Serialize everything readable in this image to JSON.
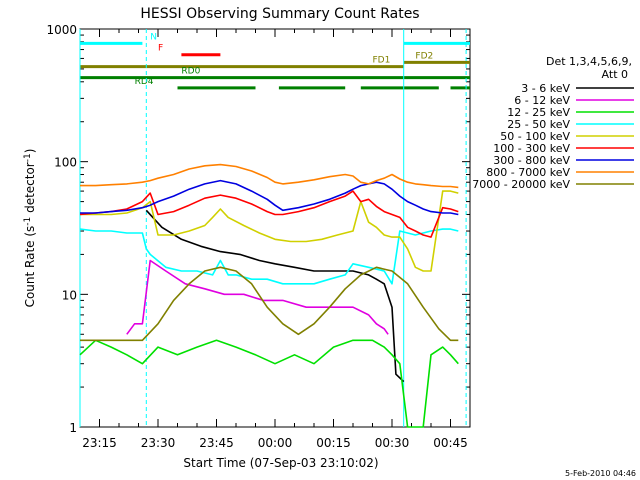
{
  "chart_data": {
    "type": "line",
    "title": "HESSI Observing Summary Count Rates",
    "xlabel": "Start Time (07-Sep-03 23:10:02)",
    "ylabel_main": "Count Rate (s",
    "ylabel_sup1": "-1",
    "ylabel_mid": " detector",
    "ylabel_sup2": "-1",
    "ylabel_end": ")",
    "yscale": "log",
    "ylim": [
      1,
      1000
    ],
    "xlim_minutes": [
      0,
      100
    ],
    "x_tick_labels": [
      {
        "t": 5,
        "label": "23:15"
      },
      {
        "t": 20,
        "label": "23:30"
      },
      {
        "t": 35,
        "label": "23:45"
      },
      {
        "t": 50,
        "label": "00:00"
      },
      {
        "t": 65,
        "label": "00:15"
      },
      {
        "t": 80,
        "label": "00:30"
      },
      {
        "t": 95,
        "label": "00:45"
      }
    ],
    "y_tick_labels": [
      {
        "v": 1,
        "label": "1"
      },
      {
        "v": 10,
        "label": "10"
      },
      {
        "v": 100,
        "label": "100"
      },
      {
        "v": 1000,
        "label": "1000"
      }
    ],
    "legend_title": "Det 1,3,4,5,6,9,",
    "legend_subtitle": "Att 0",
    "series": [
      {
        "name": "3 - 6 keV",
        "color": "#000000",
        "x": [
          0,
          14,
          17,
          21,
          26,
          31,
          36,
          41,
          46,
          50,
          55,
          60,
          65,
          70,
          74,
          76,
          78,
          80,
          81,
          83,
          84
        ],
        "y": [
          null,
          null,
          43,
          32,
          26,
          23,
          21,
          20,
          18,
          17,
          16,
          15,
          15,
          15,
          14,
          13,
          12,
          8,
          2.5,
          2.2,
          null
        ]
      },
      {
        "name": "6 - 12 keV",
        "color": "#e000e0",
        "x": [
          12,
          14,
          16,
          18,
          22,
          27,
          32,
          37,
          42,
          47,
          52,
          58,
          64,
          70,
          74,
          76,
          78,
          79,
          80
        ],
        "y": [
          5,
          6,
          6,
          18,
          15,
          12,
          11,
          10,
          10,
          9,
          9,
          8,
          8,
          8,
          7,
          6,
          5.5,
          5,
          null
        ]
      },
      {
        "name": "12 - 25 keV",
        "color": "#00e000",
        "x": [
          0,
          4,
          8,
          12,
          16,
          20,
          25,
          30,
          35,
          40,
          45,
          50,
          55,
          60,
          65,
          70,
          75,
          78,
          80,
          82,
          84,
          86,
          88,
          90,
          93,
          95,
          97
        ],
        "y": [
          3.5,
          4.5,
          4,
          3.5,
          3,
          4,
          3.5,
          4,
          4.5,
          4,
          3.5,
          3,
          3.5,
          3,
          4,
          4.5,
          4.5,
          4,
          3.5,
          3,
          1,
          1,
          1,
          3.5,
          4,
          3.5,
          3
        ]
      },
      {
        "name": "25 - 50 keV",
        "color": "#00ffff",
        "x": [
          0,
          4,
          8,
          12,
          16,
          17,
          18,
          22,
          26,
          30,
          34,
          36,
          38,
          40,
          44,
          48,
          52,
          56,
          60,
          64,
          68,
          70,
          74,
          78,
          80,
          82,
          86,
          90,
          93,
          95,
          97
        ],
        "y": [
          31,
          30,
          30,
          29,
          29,
          22,
          20,
          16,
          15,
          15,
          14,
          18,
          14,
          14,
          13,
          13,
          12,
          12,
          12,
          13,
          14,
          17,
          16,
          15,
          12,
          30,
          28,
          30,
          31,
          31,
          30
        ]
      },
      {
        "name": "50 - 100 keV",
        "color": "#d0d000",
        "x": [
          0,
          4,
          8,
          12,
          16,
          18,
          20,
          24,
          28,
          32,
          34,
          36,
          38,
          42,
          46,
          50,
          54,
          58,
          62,
          66,
          70,
          72,
          74,
          76,
          78,
          80,
          82,
          84,
          86,
          88,
          90,
          93,
          95,
          97
        ],
        "y": [
          40,
          40,
          40,
          41,
          45,
          50,
          28,
          28,
          30,
          33,
          38,
          44,
          38,
          33,
          29,
          26,
          25,
          25,
          26,
          28,
          30,
          50,
          35,
          32,
          28,
          27,
          27,
          22,
          16,
          15,
          15,
          60,
          60,
          58
        ]
      },
      {
        "name": "100 - 300 keV",
        "color": "#ff0000",
        "x": [
          0,
          4,
          8,
          12,
          16,
          18,
          20,
          24,
          28,
          32,
          36,
          40,
          44,
          48,
          50,
          52,
          56,
          60,
          64,
          68,
          70,
          72,
          74,
          76,
          78,
          80,
          82,
          84,
          86,
          88,
          90,
          93,
          95,
          97
        ],
        "y": [
          40,
          41,
          42,
          44,
          50,
          58,
          40,
          42,
          47,
          53,
          56,
          53,
          48,
          42,
          40,
          40,
          42,
          45,
          50,
          55,
          60,
          50,
          52,
          46,
          42,
          40,
          38,
          32,
          30,
          28,
          27,
          45,
          44,
          42
        ]
      },
      {
        "name": "300 - 800 keV",
        "color": "#0000e0",
        "x": [
          0,
          4,
          8,
          12,
          16,
          18,
          20,
          24,
          28,
          32,
          36,
          40,
          44,
          48,
          50,
          52,
          56,
          60,
          64,
          68,
          70,
          72,
          74,
          76,
          78,
          80,
          82,
          84,
          86,
          88,
          90,
          93,
          95,
          97
        ],
        "y": [
          41,
          41,
          42,
          43,
          45,
          47,
          50,
          55,
          62,
          68,
          72,
          68,
          60,
          52,
          47,
          43,
          45,
          48,
          52,
          58,
          62,
          66,
          68,
          70,
          68,
          62,
          55,
          50,
          47,
          44,
          42,
          41,
          41,
          40
        ]
      },
      {
        "name": "800 - 7000 keV",
        "color": "#ff8000",
        "x": [
          0,
          4,
          8,
          12,
          16,
          18,
          20,
          24,
          28,
          32,
          36,
          40,
          44,
          48,
          50,
          52,
          56,
          60,
          64,
          68,
          70,
          72,
          74,
          76,
          78,
          80,
          82,
          84,
          86,
          88,
          90,
          93,
          95,
          97
        ],
        "y": [
          66,
          66,
          67,
          68,
          70,
          72,
          75,
          80,
          88,
          93,
          95,
          92,
          85,
          76,
          70,
          68,
          70,
          73,
          77,
          80,
          78,
          70,
          68,
          72,
          75,
          80,
          74,
          70,
          68,
          67,
          66,
          65,
          65,
          64
        ]
      },
      {
        "name": "7000 - 20000 keV",
        "color": "#808000",
        "x": [
          0,
          4,
          8,
          12,
          16,
          20,
          24,
          28,
          32,
          36,
          40,
          44,
          48,
          52,
          56,
          60,
          64,
          68,
          72,
          76,
          80,
          84,
          88,
          92,
          95,
          97
        ],
        "y": [
          4.5,
          4.5,
          4.5,
          4.5,
          4.5,
          6,
          9,
          12,
          15,
          16,
          15,
          12,
          8,
          6,
          5,
          6,
          8,
          11,
          14,
          16,
          15,
          12,
          8,
          5.5,
          4.5,
          4.5
        ]
      }
    ],
    "status_bars": [
      {
        "label": "N",
        "color": "#00ffff",
        "level": 780,
        "segments": [
          [
            0,
            16
          ],
          [
            83,
            100
          ]
        ],
        "label_t": 18
      },
      {
        "label": "F",
        "color": "#ff0000",
        "level": 640,
        "segments": [
          [
            26,
            36
          ]
        ],
        "label_t": 20
      },
      {
        "label": "FD1",
        "color": "#808000",
        "level": 520,
        "segments": [
          [
            0,
            83
          ]
        ],
        "label_t": 75
      },
      {
        "label": "FD2",
        "color": "#808000",
        "level": 560,
        "segments": [
          [
            83,
            100
          ]
        ],
        "label_t": 86
      },
      {
        "label": "RD0",
        "color": "#008000",
        "level": 430,
        "segments": [
          [
            0,
            100
          ]
        ],
        "label_t": 26
      },
      {
        "label": "RD4",
        "color": "#008000",
        "level": 360,
        "segments": [
          [
            25,
            45
          ],
          [
            51,
            68
          ],
          [
            72,
            92
          ],
          [
            95,
            100
          ]
        ],
        "label_t": 14
      }
    ],
    "vertical_markers": [
      {
        "t": 0,
        "color": "#00ffff",
        "style": "solid"
      },
      {
        "t": 17,
        "color": "#00ffff",
        "style": "dashed"
      },
      {
        "t": 83,
        "color": "#00ffff",
        "style": "solid"
      },
      {
        "t": 99,
        "color": "#00ffff",
        "style": "dashed"
      }
    ],
    "timestamp": "5-Feb-2010 04:46"
  }
}
